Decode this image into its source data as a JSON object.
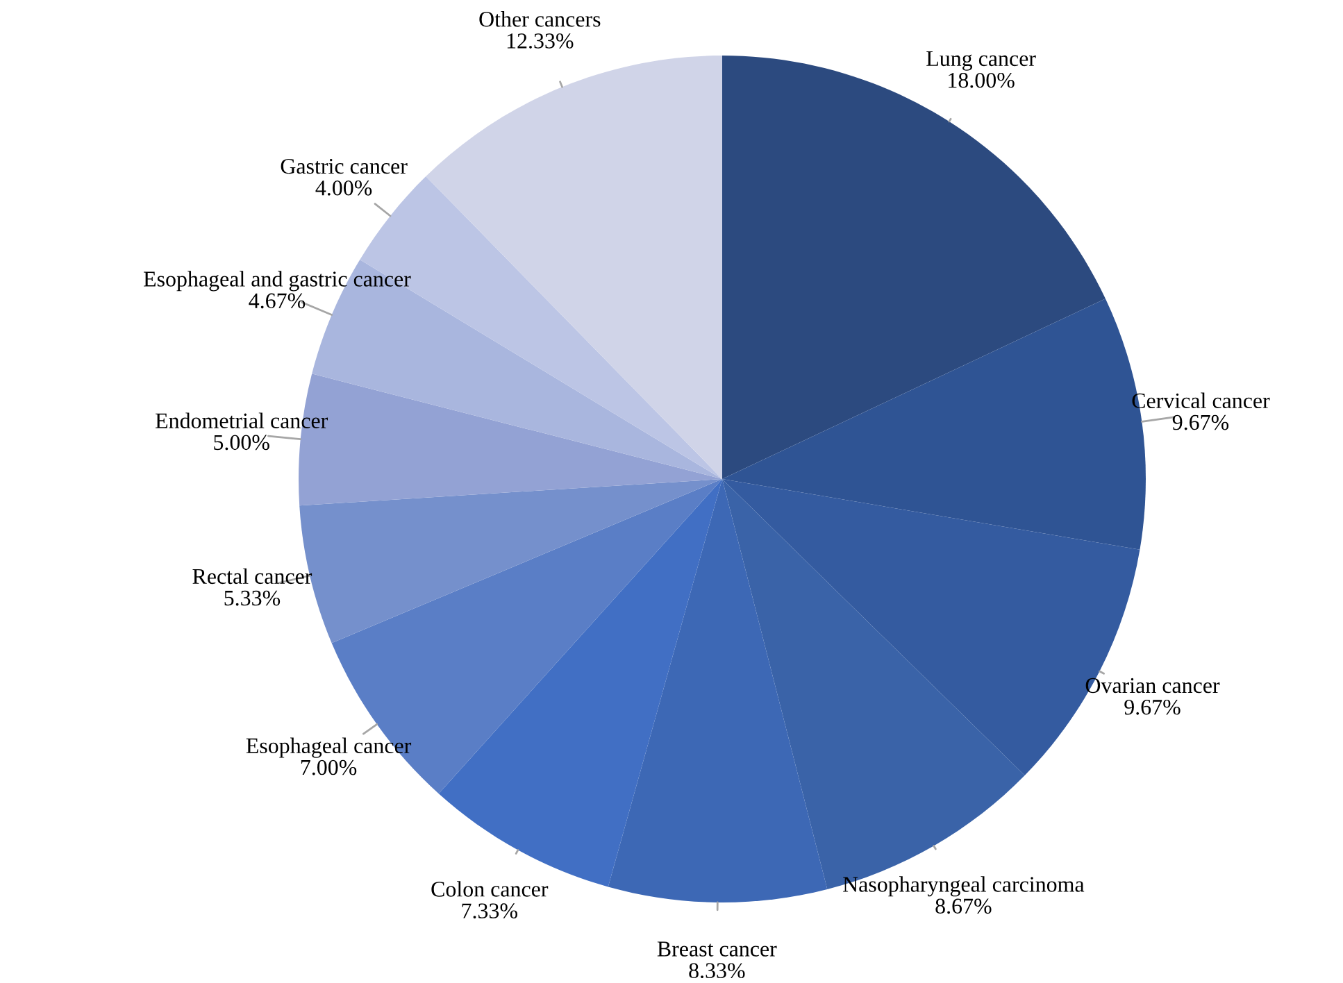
{
  "chart_data": {
    "type": "pie",
    "categories": [
      "Lung cancer",
      "Cervical cancer",
      "Ovarian cancer",
      "Nasopharyngeal carcinoma",
      "Breast cancer",
      "Colon cancer",
      "Esophageal cancer",
      "Rectal cancer",
      "Endometrial cancer",
      "Esophageal and gastric cancer",
      "Gastric cancer",
      "Other cancers"
    ],
    "values": [
      18.0,
      9.67,
      9.67,
      8.67,
      8.33,
      7.33,
      7.0,
      5.33,
      5.0,
      4.67,
      4.0,
      12.33
    ],
    "colors": [
      "#2c4a7f",
      "#2f5494",
      "#345ba0",
      "#3a63a8",
      "#3d68b5",
      "#416fc4",
      "#5a7ec6",
      "#7590cc",
      "#93a2d4",
      "#a9b6de",
      "#bcc5e5",
      "#d0d4e8"
    ],
    "value_labels": [
      "18.00%",
      "9.67%",
      "9.67%",
      "8.67%",
      "8.33%",
      "7.33%",
      "7.00%",
      "5.33%",
      "5.00%",
      "4.67%",
      "4.00%",
      "12.33%"
    ],
    "legend": false
  }
}
